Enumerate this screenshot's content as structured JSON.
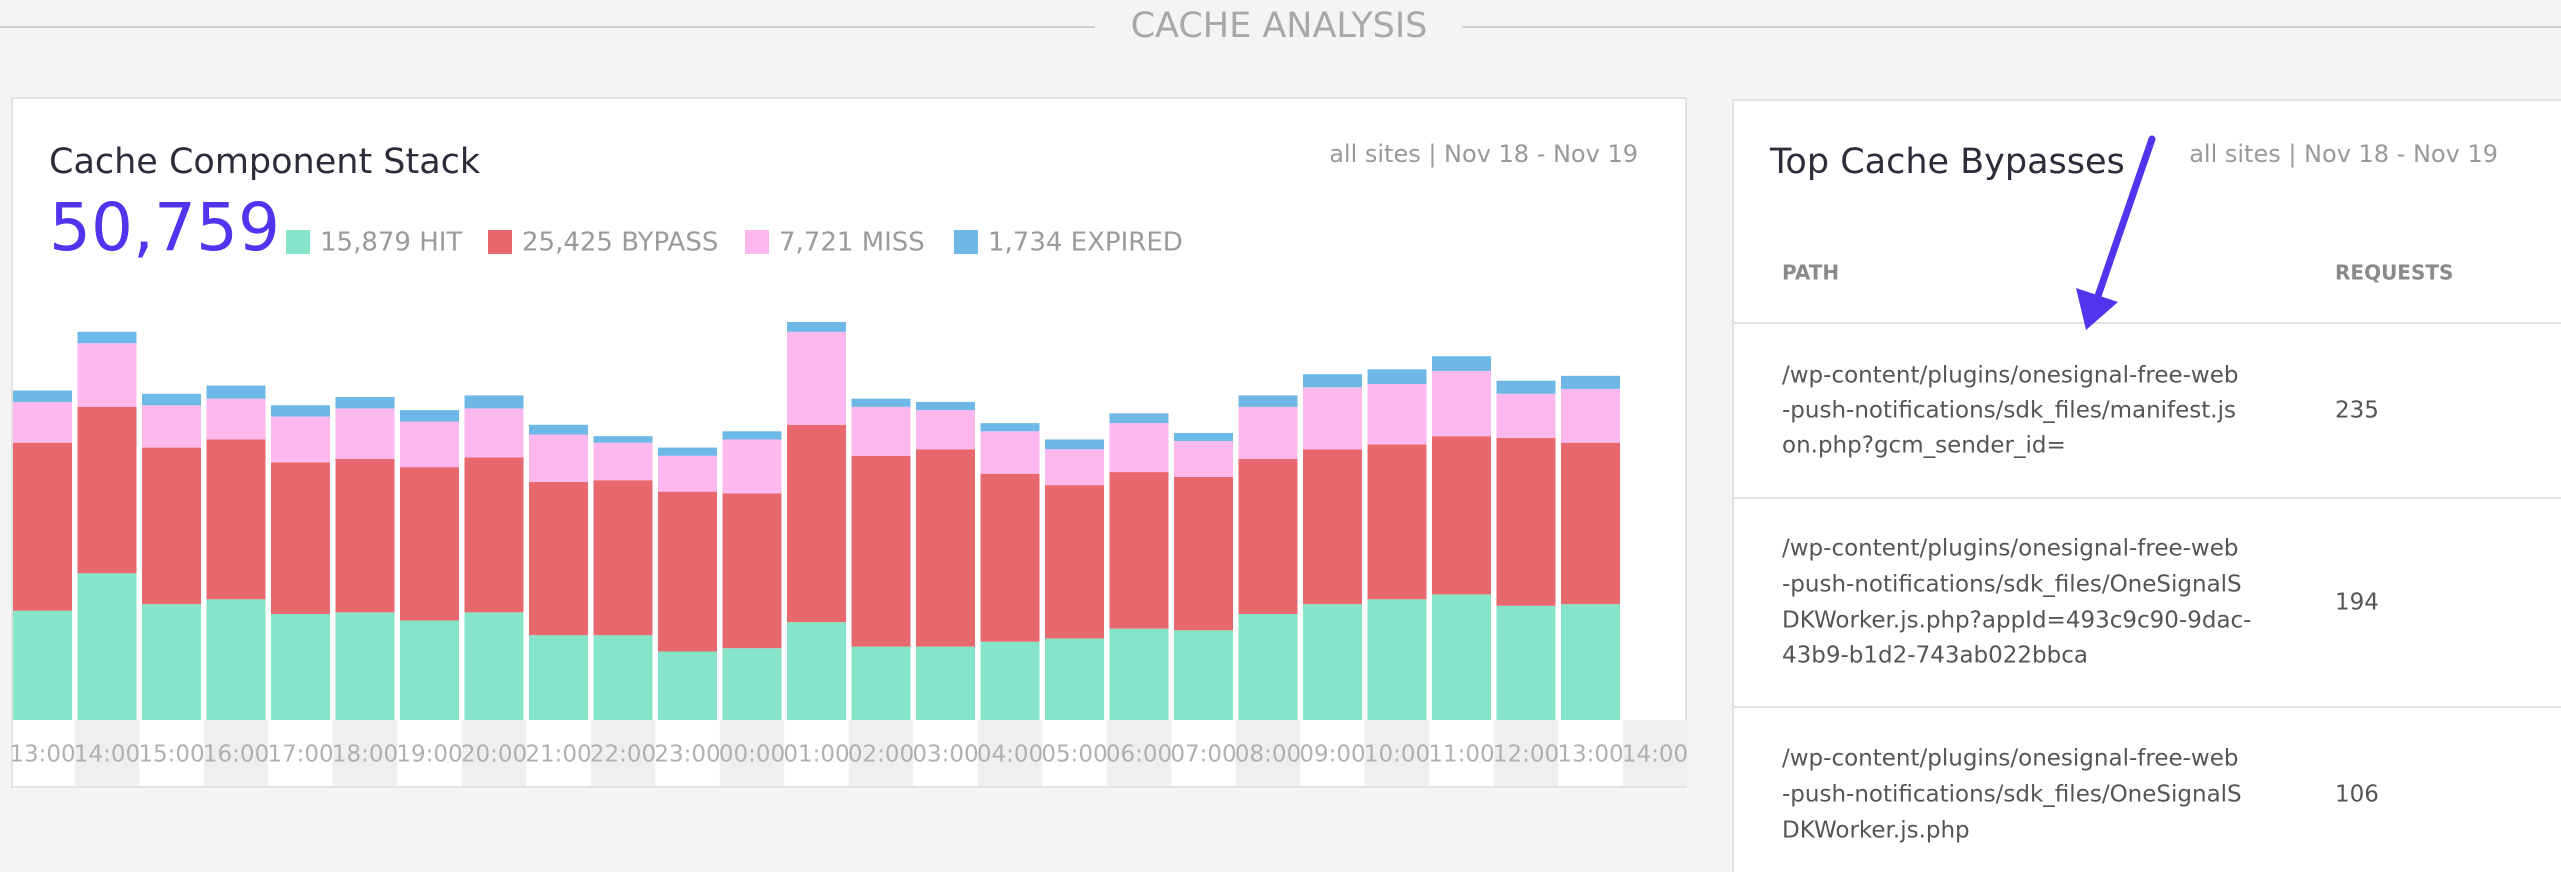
{
  "header": {
    "title": "CACHE ANALYSIS"
  },
  "chart_data": {
    "type": "stacked-bar",
    "title": "Cache Component Stack",
    "meta": "all sites | Nov 18 - Nov 19",
    "total": "50,759",
    "categories": [
      "13:00",
      "14:00",
      "15:00",
      "16:00",
      "17:00",
      "18:00",
      "19:00",
      "20:00",
      "21:00",
      "22:00",
      "23:00",
      "00:00",
      "01:00",
      "02:00",
      "03:00",
      "04:00",
      "05:00",
      "06:00",
      "07:00",
      "08:00",
      "09:00",
      "10:00",
      "11:00",
      "12:00",
      "13:00",
      "14:00"
    ],
    "series": [
      {
        "name": "15,879 HIT",
        "color": "#86e5c9",
        "values": [
          670,
          900,
          710,
          740,
          650,
          660,
          610,
          660,
          520,
          520,
          420,
          440,
          600,
          450,
          450,
          480,
          500,
          560,
          550,
          650,
          710,
          740,
          770,
          700,
          710,
          null
        ]
      },
      {
        "name": "25,425 BYPASS",
        "color": "#e8696d",
        "values": [
          1030,
          1020,
          960,
          980,
          930,
          940,
          940,
          950,
          940,
          950,
          980,
          950,
          1210,
          1170,
          1210,
          1030,
          940,
          960,
          940,
          950,
          950,
          950,
          970,
          1030,
          990,
          null
        ]
      },
      {
        "name": "7,721 MISS",
        "color": "#fdb8ee",
        "values": [
          250,
          390,
          260,
          250,
          280,
          310,
          280,
          300,
          290,
          230,
          220,
          330,
          570,
          300,
          240,
          260,
          220,
          300,
          220,
          320,
          380,
          370,
          400,
          270,
          330,
          null
        ]
      },
      {
        "name": "1,734 EXPIRED",
        "color": "#6db8e6",
        "values": [
          70,
          70,
          70,
          80,
          70,
          70,
          70,
          80,
          60,
          40,
          50,
          50,
          60,
          50,
          50,
          50,
          60,
          60,
          50,
          70,
          80,
          90,
          90,
          80,
          80,
          null
        ]
      }
    ]
  },
  "bypasses": {
    "title": "Top Cache Bypasses",
    "meta": "all sites | Nov 18 - Nov 19",
    "columns": [
      "PATH",
      "REQUESTS"
    ],
    "rows": [
      {
        "path": [
          "/wp-content/plugins/onesignal-free-web",
          "-push-notifications/sdk_files/manifest.js",
          "on.php?gcm_sender_id="
        ],
        "requests": "235"
      },
      {
        "path": [
          "/wp-content/plugins/onesignal-free-web",
          "-push-notifications/sdk_files/OneSignalS",
          "DKWorker.js.php?appId=493c9c90-9dac-",
          "43b9-b1d2-743ab022bbca"
        ],
        "requests": "194"
      },
      {
        "path": [
          "/wp-content/plugins/onesignal-free-web",
          "-push-notifications/sdk_files/OneSignalS",
          "DKWorker.js.php"
        ],
        "requests": "106"
      }
    ]
  }
}
